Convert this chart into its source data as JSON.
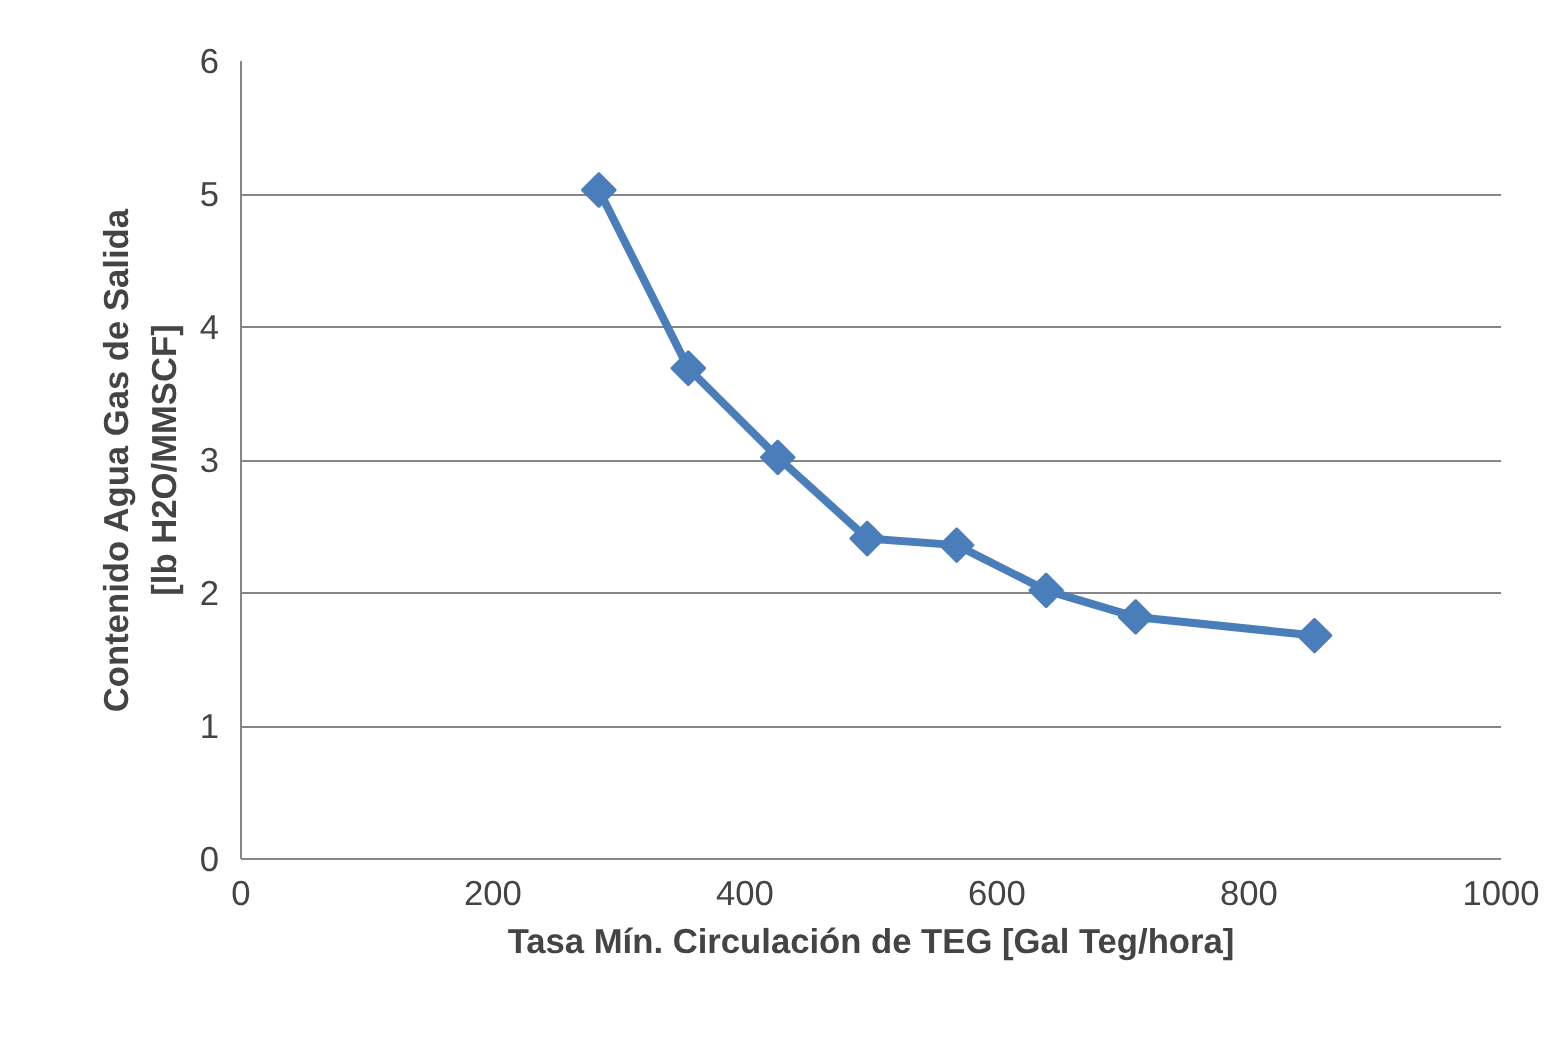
{
  "chart_data": {
    "type": "line",
    "xlabel": "Tasa Mín. Circulación de TEG [Gal Teg/hora]",
    "ylabel": "Contenido Agua Gas de Salida\n[lb H2O/MMSCF]",
    "x": [
      284,
      355,
      426,
      497,
      568,
      639,
      710,
      852
    ],
    "series": [
      {
        "color": "#4a7ebb",
        "values": [
          5.03,
          3.69,
          3.02,
          2.41,
          2.36,
          2.02,
          1.82,
          1.68
        ]
      }
    ],
    "xlim": [
      0,
      1000
    ],
    "xticks": [
      0,
      200,
      400,
      600,
      800,
      1000
    ],
    "ylim": [
      0,
      6
    ],
    "yticks": [
      0,
      1,
      2,
      3,
      4,
      5,
      6
    ],
    "grid": "y",
    "marker": "diamond",
    "line_style": "solid"
  }
}
